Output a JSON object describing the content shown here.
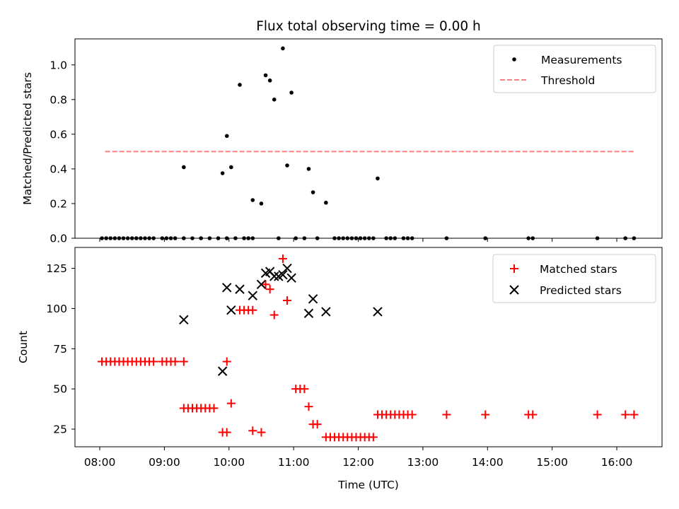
{
  "chart_data": [
    {
      "type": "scatter",
      "title": "Flux total observing time = 0.00 h",
      "xlabel": "",
      "ylabel": "Matched/Predicted stars",
      "ylim": [
        0,
        1.15
      ],
      "xlim": [
        "07:37",
        "16:42"
      ],
      "y_ticks": [
        0.0,
        0.2,
        0.4,
        0.6,
        0.8,
        1.0
      ],
      "y_tick_labels": [
        "0.0",
        "0.2",
        "0.4",
        "0.6",
        "0.8",
        "1.0"
      ],
      "legend_position": "top-right",
      "legend": [
        "Measurements",
        "Threshold"
      ],
      "colors": {
        "measurements": "#000000",
        "threshold": "#ff7f7f"
      },
      "series": [
        {
          "name": "Measurements",
          "marker": "dot",
          "points": [
            [
              "08:02",
              0
            ],
            [
              "08:06",
              0
            ],
            [
              "08:10",
              0
            ],
            [
              "08:14",
              0
            ],
            [
              "08:18",
              0
            ],
            [
              "08:22",
              0
            ],
            [
              "08:26",
              0
            ],
            [
              "08:30",
              0
            ],
            [
              "08:34",
              0
            ],
            [
              "08:38",
              0
            ],
            [
              "08:42",
              0
            ],
            [
              "08:46",
              0
            ],
            [
              "08:50",
              0
            ],
            [
              "08:58",
              0
            ],
            [
              "09:02",
              0
            ],
            [
              "09:06",
              0
            ],
            [
              "09:10",
              0
            ],
            [
              "09:18",
              0
            ],
            [
              "09:26",
              0
            ],
            [
              "09:18",
              0.41
            ],
            [
              "09:34",
              0
            ],
            [
              "09:42",
              0
            ],
            [
              "09:50",
              0
            ],
            [
              "09:58",
              0
            ],
            [
              "10:06",
              0
            ],
            [
              "10:18",
              0
            ],
            [
              "10:22",
              0
            ],
            [
              "09:54",
              0.375
            ],
            [
              "09:58",
              0.59
            ],
            [
              "10:02",
              0.41
            ],
            [
              "10:10",
              0.885
            ],
            [
              "10:14",
              0
            ],
            [
              "10:22",
              0.22
            ],
            [
              "10:30",
              0.2
            ],
            [
              "10:34",
              0.94
            ],
            [
              "10:38",
              0.91
            ],
            [
              "10:42",
              0.8
            ],
            [
              "10:46",
              0
            ],
            [
              "10:50",
              1.095
            ],
            [
              "10:58",
              0.84
            ],
            [
              "10:54",
              0.42
            ],
            [
              "11:02",
              0
            ],
            [
              "11:10",
              0
            ],
            [
              "11:14",
              0.4
            ],
            [
              "11:18",
              0.265
            ],
            [
              "11:22",
              0
            ],
            [
              "11:30",
              0.205
            ],
            [
              "11:38",
              0
            ],
            [
              "11:42",
              0
            ],
            [
              "11:46",
              0
            ],
            [
              "11:50",
              0
            ],
            [
              "11:54",
              0
            ],
            [
              "11:58",
              0
            ],
            [
              "12:02",
              0
            ],
            [
              "12:06",
              0
            ],
            [
              "12:10",
              0
            ],
            [
              "12:14",
              0
            ],
            [
              "12:18",
              0.345
            ],
            [
              "12:26",
              0
            ],
            [
              "12:30",
              0
            ],
            [
              "12:34",
              0
            ],
            [
              "12:42",
              0
            ],
            [
              "12:46",
              0
            ],
            [
              "12:50",
              0
            ],
            [
              "13:22",
              0
            ],
            [
              "13:58",
              0
            ],
            [
              "14:38",
              0
            ],
            [
              "14:42",
              0
            ],
            [
              "15:42",
              0
            ],
            [
              "16:08",
              0
            ],
            [
              "16:16",
              0
            ]
          ]
        },
        {
          "name": "Threshold",
          "marker": "dashed-line",
          "points": [
            [
              "08:05",
              0.5
            ],
            [
              "16:17",
              0.5
            ]
          ]
        }
      ]
    },
    {
      "type": "scatter",
      "title": "",
      "xlabel": "Time (UTC)",
      "ylabel": "Count",
      "ylim": [
        14,
        138
      ],
      "xlim": [
        "07:37",
        "16:42"
      ],
      "y_ticks": [
        25,
        50,
        75,
        100,
        125
      ],
      "y_tick_labels": [
        "25",
        "50",
        "75",
        "100",
        "125"
      ],
      "x_ticks": [
        "08:00",
        "09:00",
        "10:00",
        "11:00",
        "12:00",
        "13:00",
        "14:00",
        "15:00",
        "16:00"
      ],
      "x_tick_labels": [
        "08:00",
        "09:00",
        "10:00",
        "11:00",
        "12:00",
        "13:00",
        "14:00",
        "15:00",
        "16:00"
      ],
      "legend_position": "top-right",
      "legend": [
        "Matched stars",
        "Predicted stars"
      ],
      "colors": {
        "matched": "#ff0000",
        "predicted": "#000000"
      },
      "series": [
        {
          "name": "Matched stars",
          "marker": "plus",
          "points": [
            [
              "08:02",
              67
            ],
            [
              "08:06",
              67
            ],
            [
              "08:10",
              67
            ],
            [
              "08:14",
              67
            ],
            [
              "08:18",
              67
            ],
            [
              "08:22",
              67
            ],
            [
              "08:26",
              67
            ],
            [
              "08:30",
              67
            ],
            [
              "08:34",
              67
            ],
            [
              "08:38",
              67
            ],
            [
              "08:42",
              67
            ],
            [
              "08:46",
              67
            ],
            [
              "08:50",
              67
            ],
            [
              "08:58",
              67
            ],
            [
              "09:02",
              67
            ],
            [
              "09:06",
              67
            ],
            [
              "09:10",
              67
            ],
            [
              "09:18",
              67
            ],
            [
              "09:18",
              38
            ],
            [
              "09:22",
              38
            ],
            [
              "09:26",
              38
            ],
            [
              "09:30",
              38
            ],
            [
              "09:34",
              38
            ],
            [
              "09:38",
              38
            ],
            [
              "09:42",
              38
            ],
            [
              "09:46",
              38
            ],
            [
              "09:54",
              23
            ],
            [
              "09:58",
              23
            ],
            [
              "09:58",
              67
            ],
            [
              "10:02",
              41
            ],
            [
              "10:10",
              99
            ],
            [
              "10:14",
              99
            ],
            [
              "10:18",
              99
            ],
            [
              "10:22",
              99
            ],
            [
              "10:22",
              24
            ],
            [
              "10:30",
              23
            ],
            [
              "10:34",
              115
            ],
            [
              "10:38",
              112
            ],
            [
              "10:42",
              96
            ],
            [
              "10:50",
              131
            ],
            [
              "10:54",
              105
            ],
            [
              "11:02",
              50
            ],
            [
              "11:06",
              50
            ],
            [
              "11:10",
              50
            ],
            [
              "11:14",
              39
            ],
            [
              "11:18",
              28
            ],
            [
              "11:22",
              28
            ],
            [
              "11:30",
              20
            ],
            [
              "11:34",
              20
            ],
            [
              "11:38",
              20
            ],
            [
              "11:42",
              20
            ],
            [
              "11:46",
              20
            ],
            [
              "11:50",
              20
            ],
            [
              "11:54",
              20
            ],
            [
              "11:58",
              20
            ],
            [
              "12:02",
              20
            ],
            [
              "12:06",
              20
            ],
            [
              "12:10",
              20
            ],
            [
              "12:14",
              20
            ],
            [
              "12:18",
              34
            ],
            [
              "12:22",
              34
            ],
            [
              "12:26",
              34
            ],
            [
              "12:30",
              34
            ],
            [
              "12:34",
              34
            ],
            [
              "12:38",
              34
            ],
            [
              "12:42",
              34
            ],
            [
              "12:46",
              34
            ],
            [
              "12:50",
              34
            ],
            [
              "13:22",
              34
            ],
            [
              "13:58",
              34
            ],
            [
              "14:38",
              34
            ],
            [
              "14:42",
              34
            ],
            [
              "15:42",
              34
            ],
            [
              "16:08",
              34
            ],
            [
              "16:16",
              34
            ]
          ]
        },
        {
          "name": "Predicted stars",
          "marker": "x",
          "points": [
            [
              "09:18",
              93
            ],
            [
              "09:54",
              61
            ],
            [
              "09:58",
              113
            ],
            [
              "10:02",
              99
            ],
            [
              "10:10",
              112
            ],
            [
              "10:22",
              108
            ],
            [
              "10:30",
              115
            ],
            [
              "10:34",
              122
            ],
            [
              "10:38",
              123
            ],
            [
              "10:42",
              120
            ],
            [
              "10:46",
              120
            ],
            [
              "10:50",
              121
            ],
            [
              "10:54",
              125
            ],
            [
              "10:58",
              119
            ],
            [
              "11:14",
              97
            ],
            [
              "11:18",
              106
            ],
            [
              "11:30",
              98
            ],
            [
              "12:18",
              98
            ]
          ]
        }
      ]
    }
  ]
}
